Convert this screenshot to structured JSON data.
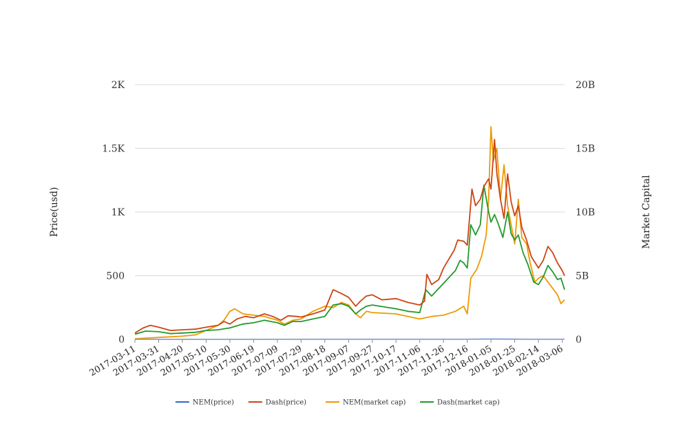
{
  "chart_data": {
    "type": "line",
    "x_dates": [
      "2017-03-11",
      "2017-03-31",
      "2017-04-20",
      "2017-05-10",
      "2017-05-30",
      "2017-06-19",
      "2017-07-09",
      "2017-07-29",
      "2017-08-18",
      "2017-09-07",
      "2017-09-27",
      "2017-10-17",
      "2017-11-06",
      "2017-11-26",
      "2017-12-16",
      "2018-01-05",
      "2018-01-25",
      "2018-02-14",
      "2018-03-06"
    ],
    "x_range": [
      "2017-03-11",
      "2018-03-08"
    ],
    "ylabel_left": "Price(usd)",
    "ylabel_right": "Market Capital",
    "left_axis": {
      "range": [
        0,
        2000
      ],
      "ticks": [
        0,
        500,
        1000,
        1500,
        2000
      ],
      "tick_labels": [
        "0",
        "500",
        "1K",
        "1.5K",
        "2K"
      ]
    },
    "right_axis": {
      "range": [
        0,
        20000000000
      ],
      "ticks": [
        0,
        5000000000,
        10000000000,
        15000000000,
        20000000000
      ],
      "tick_labels": [
        "0",
        "5B",
        "10B",
        "15B",
        "20B"
      ]
    },
    "grid": true,
    "legend_position": "bottom",
    "series": [
      {
        "name": "NEM(price)",
        "axis": "left",
        "color": "#3366cc",
        "points": [
          [
            "2017-03-11",
            0.01
          ],
          [
            "2017-05-10",
            0.08
          ],
          [
            "2017-06-19",
            0.2
          ],
          [
            "2017-09-07",
            0.3
          ],
          [
            "2017-12-16",
            0.8
          ],
          [
            "2018-01-05",
            1.5
          ],
          [
            "2018-01-25",
            1.0
          ],
          [
            "2018-02-14",
            0.45
          ],
          [
            "2018-03-06",
            0.35
          ],
          [
            "2018-03-08",
            0.33
          ]
        ]
      },
      {
        "name": "Dash(price)",
        "axis": "left",
        "color": "#cc4411",
        "points": [
          [
            "2017-03-11",
            50
          ],
          [
            "2017-03-18",
            90
          ],
          [
            "2017-03-24",
            110
          ],
          [
            "2017-03-31",
            95
          ],
          [
            "2017-04-10",
            70
          ],
          [
            "2017-04-20",
            75
          ],
          [
            "2017-05-01",
            80
          ],
          [
            "2017-05-10",
            95
          ],
          [
            "2017-05-20",
            110
          ],
          [
            "2017-05-25",
            140
          ],
          [
            "2017-05-30",
            120
          ],
          [
            "2017-06-05",
            160
          ],
          [
            "2017-06-12",
            180
          ],
          [
            "2017-06-19",
            170
          ],
          [
            "2017-06-28",
            200
          ],
          [
            "2017-07-05",
            180
          ],
          [
            "2017-07-12",
            150
          ],
          [
            "2017-07-18",
            185
          ],
          [
            "2017-07-25",
            180
          ],
          [
            "2017-07-29",
            175
          ],
          [
            "2017-08-08",
            200
          ],
          [
            "2017-08-18",
            230
          ],
          [
            "2017-08-25",
            390
          ],
          [
            "2017-09-01",
            360
          ],
          [
            "2017-09-07",
            330
          ],
          [
            "2017-09-13",
            260
          ],
          [
            "2017-09-17",
            300
          ],
          [
            "2017-09-22",
            340
          ],
          [
            "2017-09-27",
            350
          ],
          [
            "2017-10-05",
            310
          ],
          [
            "2017-10-17",
            320
          ],
          [
            "2017-10-27",
            290
          ],
          [
            "2017-11-06",
            270
          ],
          [
            "2017-11-10",
            300
          ],
          [
            "2017-11-12",
            510
          ],
          [
            "2017-11-16",
            430
          ],
          [
            "2017-11-22",
            470
          ],
          [
            "2017-11-26",
            560
          ],
          [
            "2017-12-05",
            700
          ],
          [
            "2017-12-08",
            780
          ],
          [
            "2017-12-13",
            770
          ],
          [
            "2017-12-16",
            740
          ],
          [
            "2017-12-20",
            1180
          ],
          [
            "2017-12-23",
            1050
          ],
          [
            "2017-12-27",
            1100
          ],
          [
            "2017-12-30",
            1200
          ],
          [
            "2018-01-03",
            1260
          ],
          [
            "2018-01-05",
            1180
          ],
          [
            "2018-01-08",
            1570
          ],
          [
            "2018-01-10",
            1300
          ],
          [
            "2018-01-13",
            1100
          ],
          [
            "2018-01-16",
            950
          ],
          [
            "2018-01-19",
            1300
          ],
          [
            "2018-01-22",
            1080
          ],
          [
            "2018-01-25",
            970
          ],
          [
            "2018-01-28",
            1050
          ],
          [
            "2018-01-31",
            880
          ],
          [
            "2018-02-04",
            780
          ],
          [
            "2018-02-08",
            650
          ],
          [
            "2018-02-14",
            560
          ],
          [
            "2018-02-18",
            620
          ],
          [
            "2018-02-22",
            730
          ],
          [
            "2018-02-26",
            680
          ],
          [
            "2018-03-02",
            600
          ],
          [
            "2018-03-06",
            540
          ],
          [
            "2018-03-08",
            500
          ]
        ]
      },
      {
        "name": "NEM(market cap)",
        "axis": "right",
        "color": "#ee9900",
        "points": [
          [
            "2017-03-11",
            50000000
          ],
          [
            "2017-03-31",
            150000000
          ],
          [
            "2017-04-20",
            250000000
          ],
          [
            "2017-05-01",
            350000000
          ],
          [
            "2017-05-10",
            700000000
          ],
          [
            "2017-05-20",
            1100000000
          ],
          [
            "2017-05-25",
            1500000000
          ],
          [
            "2017-05-30",
            2200000000
          ],
          [
            "2017-06-03",
            2400000000
          ],
          [
            "2017-06-10",
            2000000000
          ],
          [
            "2017-06-19",
            1900000000
          ],
          [
            "2017-06-28",
            1800000000
          ],
          [
            "2017-07-09",
            1500000000
          ],
          [
            "2017-07-15",
            1200000000
          ],
          [
            "2017-07-22",
            1500000000
          ],
          [
            "2017-07-29",
            1600000000
          ],
          [
            "2017-08-08",
            2200000000
          ],
          [
            "2017-08-18",
            2600000000
          ],
          [
            "2017-08-25",
            2500000000
          ],
          [
            "2017-09-01",
            2900000000
          ],
          [
            "2017-09-07",
            2700000000
          ],
          [
            "2017-09-13",
            2000000000
          ],
          [
            "2017-09-17",
            1700000000
          ],
          [
            "2017-09-22",
            2200000000
          ],
          [
            "2017-09-27",
            2100000000
          ],
          [
            "2017-10-17",
            2000000000
          ],
          [
            "2017-10-27",
            1800000000
          ],
          [
            "2017-11-06",
            1600000000
          ],
          [
            "2017-11-16",
            1800000000
          ],
          [
            "2017-11-26",
            1900000000
          ],
          [
            "2017-12-06",
            2200000000
          ],
          [
            "2017-12-13",
            2600000000
          ],
          [
            "2017-12-16",
            2000000000
          ],
          [
            "2017-12-19",
            4800000000
          ],
          [
            "2017-12-24",
            5500000000
          ],
          [
            "2017-12-28",
            6500000000
          ],
          [
            "2018-01-01",
            8200000000
          ],
          [
            "2018-01-03",
            11000000000
          ],
          [
            "2018-01-05",
            16700000000
          ],
          [
            "2018-01-07",
            14000000000
          ],
          [
            "2018-01-10",
            15000000000
          ],
          [
            "2018-01-13",
            11000000000
          ],
          [
            "2018-01-16",
            13700000000
          ],
          [
            "2018-01-19",
            10500000000
          ],
          [
            "2018-01-22",
            9000000000
          ],
          [
            "2018-01-25",
            7500000000
          ],
          [
            "2018-01-28",
            11000000000
          ],
          [
            "2018-01-31",
            8000000000
          ],
          [
            "2018-02-04",
            7500000000
          ],
          [
            "2018-02-07",
            6000000000
          ],
          [
            "2018-02-11",
            4500000000
          ],
          [
            "2018-02-14",
            4800000000
          ],
          [
            "2018-02-18",
            5000000000
          ],
          [
            "2018-02-22",
            4500000000
          ],
          [
            "2018-02-26",
            4000000000
          ],
          [
            "2018-03-02",
            3500000000
          ],
          [
            "2018-03-05",
            2800000000
          ],
          [
            "2018-03-08",
            3100000000
          ]
        ]
      },
      {
        "name": "Dash(market cap)",
        "axis": "right",
        "color": "#22992a",
        "points": [
          [
            "2017-03-11",
            400000000
          ],
          [
            "2017-03-20",
            650000000
          ],
          [
            "2017-03-31",
            600000000
          ],
          [
            "2017-04-10",
            450000000
          ],
          [
            "2017-04-20",
            500000000
          ],
          [
            "2017-05-01",
            550000000
          ],
          [
            "2017-05-10",
            700000000
          ],
          [
            "2017-05-20",
            750000000
          ],
          [
            "2017-05-30",
            900000000
          ],
          [
            "2017-06-10",
            1200000000
          ],
          [
            "2017-06-19",
            1300000000
          ],
          [
            "2017-06-28",
            1500000000
          ],
          [
            "2017-07-09",
            1300000000
          ],
          [
            "2017-07-15",
            1100000000
          ],
          [
            "2017-07-22",
            1400000000
          ],
          [
            "2017-07-29",
            1400000000
          ],
          [
            "2017-08-08",
            1600000000
          ],
          [
            "2017-08-18",
            1800000000
          ],
          [
            "2017-08-25",
            2700000000
          ],
          [
            "2017-09-01",
            2800000000
          ],
          [
            "2017-09-07",
            2600000000
          ],
          [
            "2017-09-13",
            2000000000
          ],
          [
            "2017-09-17",
            2300000000
          ],
          [
            "2017-09-22",
            2600000000
          ],
          [
            "2017-09-27",
            2700000000
          ],
          [
            "2017-10-17",
            2400000000
          ],
          [
            "2017-10-27",
            2200000000
          ],
          [
            "2017-11-06",
            2100000000
          ],
          [
            "2017-11-11",
            3900000000
          ],
          [
            "2017-11-16",
            3400000000
          ],
          [
            "2017-11-26",
            4400000000
          ],
          [
            "2017-12-06",
            5400000000
          ],
          [
            "2017-12-10",
            6200000000
          ],
          [
            "2017-12-13",
            6000000000
          ],
          [
            "2017-12-16",
            5600000000
          ],
          [
            "2017-12-19",
            9000000000
          ],
          [
            "2017-12-23",
            8200000000
          ],
          [
            "2017-12-27",
            9000000000
          ],
          [
            "2017-12-30",
            12100000000
          ],
          [
            "2018-01-03",
            10000000000
          ],
          [
            "2018-01-05",
            9200000000
          ],
          [
            "2018-01-08",
            9800000000
          ],
          [
            "2018-01-11",
            9100000000
          ],
          [
            "2018-01-15",
            8000000000
          ],
          [
            "2018-01-19",
            10000000000
          ],
          [
            "2018-01-22",
            8300000000
          ],
          [
            "2018-01-25",
            7800000000
          ],
          [
            "2018-01-28",
            8200000000
          ],
          [
            "2018-02-01",
            6800000000
          ],
          [
            "2018-02-05",
            5900000000
          ],
          [
            "2018-02-10",
            4500000000
          ],
          [
            "2018-02-14",
            4300000000
          ],
          [
            "2018-02-18",
            4900000000
          ],
          [
            "2018-02-22",
            5800000000
          ],
          [
            "2018-02-26",
            5300000000
          ],
          [
            "2018-03-02",
            4700000000
          ],
          [
            "2018-03-05",
            4800000000
          ],
          [
            "2018-03-08",
            3900000000
          ]
        ]
      }
    ]
  }
}
